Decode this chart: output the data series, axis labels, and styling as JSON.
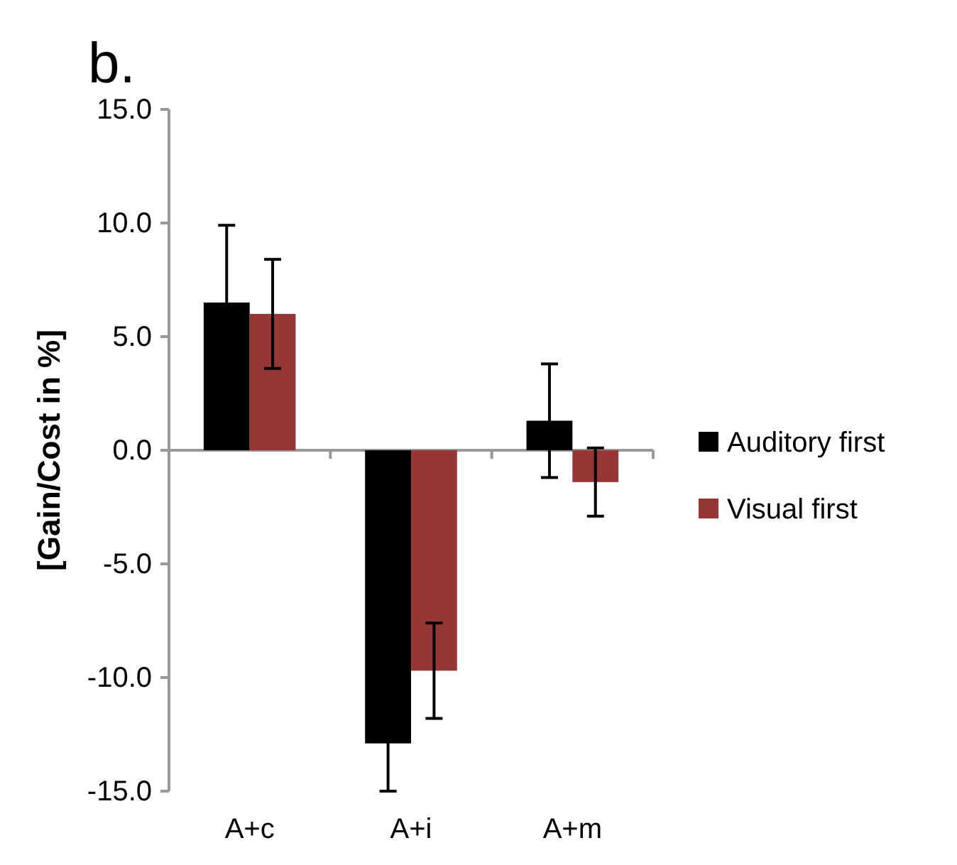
{
  "chart_data": {
    "type": "bar",
    "title": "b.",
    "ylabel": "[Gain/Cost in %]",
    "categories": [
      "A+c",
      "A+i",
      "A+m"
    ],
    "series": [
      {
        "name": "Auditory first",
        "color": "#000000",
        "values": [
          6.5,
          -12.9,
          1.3
        ],
        "errors": [
          3.4,
          2.1,
          2.5
        ]
      },
      {
        "name": "Visual first",
        "color": "#953735",
        "values": [
          6.0,
          -9.7,
          -1.4
        ],
        "errors": [
          2.4,
          2.1,
          1.5
        ]
      }
    ],
    "ylim": [
      -15,
      15
    ],
    "yticks": [
      {
        "value": -15,
        "label": "-15.0"
      },
      {
        "value": -10,
        "label": "-10.0"
      },
      {
        "value": -5,
        "label": "-5.0"
      },
      {
        "value": 0,
        "label": "0.0"
      },
      {
        "value": 5,
        "label": "5.0"
      },
      {
        "value": 10,
        "label": "10.0"
      },
      {
        "value": 15,
        "label": "15.0"
      }
    ],
    "legend": "right"
  }
}
